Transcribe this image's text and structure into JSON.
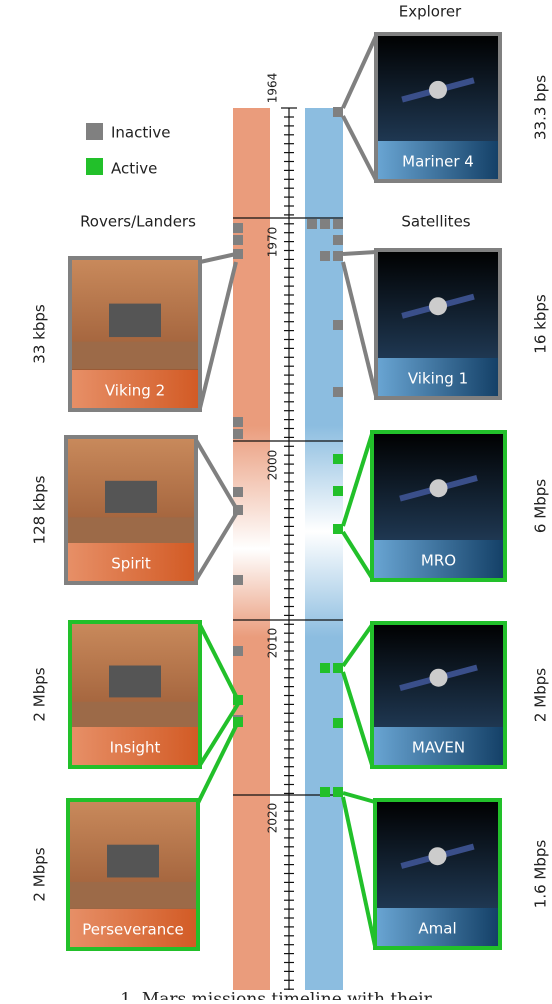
{
  "header": {
    "explorer": "Explorer",
    "rovers": "Rovers/Landers",
    "satellites": "Satellites"
  },
  "legend": {
    "inactive": "Inactive",
    "active": "Active"
  },
  "years": [
    "1964",
    "1970",
    "2000",
    "2010",
    "2020"
  ],
  "landers": [
    {
      "name": "Viking 2",
      "rate": "33 kbps"
    },
    {
      "name": "Spirit",
      "rate": "128 kbps"
    },
    {
      "name": "Insight",
      "rate": "2 Mbps"
    },
    {
      "name": "Perseverance",
      "rate": "2 Mbps"
    }
  ],
  "satellites": [
    {
      "name": "Mariner 4",
      "rate": "33.3 bps"
    },
    {
      "name": "Viking 1",
      "rate": "16 kbps"
    },
    {
      "name": "MRO",
      "rate": "6 Mbps"
    },
    {
      "name": "MAVEN",
      "rate": "2 Mbps"
    },
    {
      "name": "Amal",
      "rate": "1.6 Mbps"
    }
  ],
  "caption": "1. Mars missions timeline with their"
}
